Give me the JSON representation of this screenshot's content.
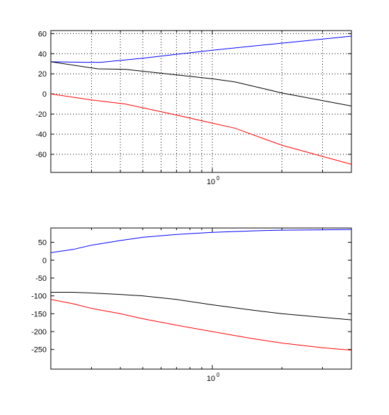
{
  "chart_data": [
    {
      "type": "line",
      "x_scale": "log",
      "xlim": [
        0.2,
        4.0
      ],
      "ylim": [
        -78,
        63
      ],
      "yticks": [
        -60,
        -40,
        -20,
        0,
        20,
        40,
        60
      ],
      "ytick_labels": [
        "-60",
        "-40",
        "-20",
        "0",
        "20",
        "40",
        "60"
      ],
      "xtick_label": {
        "base": "10",
        "exp": "0",
        "value": 1
      },
      "grid": true,
      "series": [
        {
          "color": "#0000ff",
          "x": [
            0.2,
            0.28,
            0.33,
            0.5,
            1.0,
            2.0,
            4.0
          ],
          "y": [
            32,
            31.5,
            31.5,
            35.5,
            43.5,
            50.5,
            57.5
          ]
        },
        {
          "color": "#000000",
          "x": [
            0.2,
            0.32,
            0.42,
            0.7,
            1.0,
            1.25,
            2.0,
            4.0
          ],
          "y": [
            32,
            25,
            24.5,
            19,
            15,
            12,
            1,
            -12
          ]
        },
        {
          "color": "#ff0000",
          "x": [
            0.2,
            0.3,
            0.42,
            0.7,
            1.0,
            1.25,
            2.0,
            4.0
          ],
          "y": [
            0,
            -6,
            -10,
            -21,
            -29,
            -34,
            -51,
            -70
          ]
        }
      ]
    },
    {
      "type": "line",
      "x_scale": "log",
      "xlim": [
        0.2,
        4.0
      ],
      "ylim": [
        -305,
        90
      ],
      "yticks": [
        -250,
        -200,
        -150,
        -100,
        -50,
        0,
        50
      ],
      "ytick_labels": [
        "-250",
        "-200",
        "-150",
        "-100",
        "-50",
        "0",
        "50"
      ],
      "xtick_label": {
        "base": "10",
        "exp": "0",
        "value": 1
      },
      "grid": false,
      "series": [
        {
          "color": "#0000ff",
          "x": [
            0.2,
            0.25,
            0.3,
            0.4,
            0.5,
            0.7,
            1.0,
            1.5,
            2.0,
            3.0,
            4.0
          ],
          "y": [
            21,
            30,
            42,
            55,
            64,
            72,
            78,
            82,
            84,
            85,
            86
          ]
        },
        {
          "color": "#000000",
          "x": [
            0.2,
            0.25,
            0.3,
            0.4,
            0.5,
            0.7,
            1.0,
            1.5,
            2.0,
            3.0,
            4.0
          ],
          "y": [
            -90,
            -90,
            -92,
            -96,
            -100,
            -110,
            -125,
            -140,
            -150,
            -160,
            -167
          ]
        },
        {
          "color": "#ff0000",
          "x": [
            0.2,
            0.25,
            0.3,
            0.4,
            0.5,
            0.7,
            1.0,
            1.5,
            2.0,
            3.0,
            4.0
          ],
          "y": [
            -110,
            -122,
            -135,
            -150,
            -164,
            -182,
            -200,
            -220,
            -232,
            -245,
            -252
          ]
        }
      ]
    }
  ]
}
